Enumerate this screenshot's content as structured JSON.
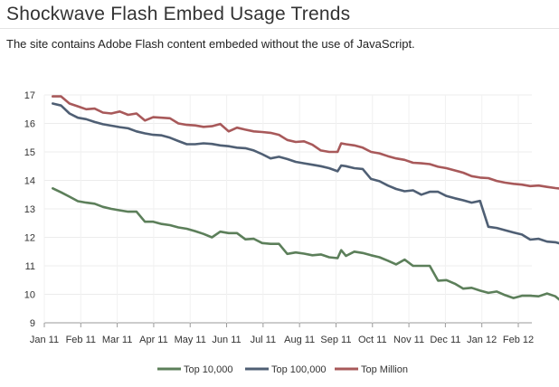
{
  "header": {
    "title": "Shockwave Flash Embed Usage Trends",
    "subtitle": "The site contains Adobe Flash content embeded without the use of JavaScript."
  },
  "chart_data": {
    "type": "line",
    "title": "Shockwave Flash Embed Usage Trends",
    "xlabel": "",
    "ylabel": "",
    "x_ticks": [
      "Jan 11",
      "Feb 11",
      "Mar 11",
      "Apr 11",
      "May 11",
      "Jun 11",
      "Jul 11",
      "Aug 11",
      "Sep 11",
      "Oct 11",
      "Nov 11",
      "Dec 11",
      "Jan 12",
      "Feb 12"
    ],
    "ylim": [
      9,
      17
    ],
    "y_ticks": [
      9,
      10,
      11,
      12,
      13,
      14,
      15,
      16,
      17
    ],
    "grid": true,
    "legend": "bottom",
    "series": [
      {
        "name": "Top 10,000",
        "color": "#5c7f5a",
        "points": [
          [
            "2011-01-08",
            13.72
          ],
          [
            "2011-01-15",
            13.58
          ],
          [
            "2011-01-22",
            13.43
          ],
          [
            "2011-01-29",
            13.27
          ],
          [
            "2011-02-05",
            13.22
          ],
          [
            "2011-02-12",
            13.18
          ],
          [
            "2011-02-19",
            13.07
          ],
          [
            "2011-02-26",
            13.0
          ],
          [
            "2011-03-05",
            12.95
          ],
          [
            "2011-03-12",
            12.9
          ],
          [
            "2011-03-19",
            12.9
          ],
          [
            "2011-03-26",
            12.55
          ],
          [
            "2011-04-02",
            12.55
          ],
          [
            "2011-04-09",
            12.47
          ],
          [
            "2011-04-16",
            12.43
          ],
          [
            "2011-04-23",
            12.35
          ],
          [
            "2011-04-30",
            12.3
          ],
          [
            "2011-05-07",
            12.22
          ],
          [
            "2011-05-14",
            12.12
          ],
          [
            "2011-05-21",
            12.0
          ],
          [
            "2011-05-28",
            12.2
          ],
          [
            "2011-06-04",
            12.15
          ],
          [
            "2011-06-11",
            12.15
          ],
          [
            "2011-06-18",
            11.93
          ],
          [
            "2011-06-25",
            11.95
          ],
          [
            "2011-07-02",
            11.8
          ],
          [
            "2011-07-09",
            11.77
          ],
          [
            "2011-07-16",
            11.77
          ],
          [
            "2011-07-23",
            11.42
          ],
          [
            "2011-07-30",
            11.47
          ],
          [
            "2011-08-06",
            11.43
          ],
          [
            "2011-08-13",
            11.37
          ],
          [
            "2011-08-20",
            11.4
          ],
          [
            "2011-08-27",
            11.3
          ],
          [
            "2011-09-03",
            11.27
          ],
          [
            "2011-09-06",
            11.55
          ],
          [
            "2011-09-10",
            11.35
          ],
          [
            "2011-09-17",
            11.5
          ],
          [
            "2011-09-24",
            11.45
          ],
          [
            "2011-10-01",
            11.37
          ],
          [
            "2011-10-08",
            11.3
          ],
          [
            "2011-10-15",
            11.18
          ],
          [
            "2011-10-22",
            11.05
          ],
          [
            "2011-10-29",
            11.22
          ],
          [
            "2011-11-05",
            11.0
          ],
          [
            "2011-11-12",
            11.0
          ],
          [
            "2011-11-19",
            11.0
          ],
          [
            "2011-11-26",
            10.48
          ],
          [
            "2011-12-03",
            10.5
          ],
          [
            "2011-12-10",
            10.37
          ],
          [
            "2011-12-17",
            10.2
          ],
          [
            "2011-12-24",
            10.23
          ],
          [
            "2011-12-31",
            10.13
          ],
          [
            "2012-01-07",
            10.05
          ],
          [
            "2012-01-14",
            10.1
          ],
          [
            "2012-01-21",
            9.97
          ],
          [
            "2012-01-28",
            9.87
          ],
          [
            "2012-02-04",
            9.95
          ],
          [
            "2012-02-11",
            9.95
          ],
          [
            "2012-02-18",
            9.93
          ],
          [
            "2012-02-25",
            10.03
          ],
          [
            "2012-03-03",
            9.93
          ],
          [
            "2012-03-10",
            9.68
          ]
        ]
      },
      {
        "name": "Top 100,000",
        "color": "#4f5f74",
        "points": [
          [
            "2011-01-08",
            16.7
          ],
          [
            "2011-01-15",
            16.63
          ],
          [
            "2011-01-22",
            16.35
          ],
          [
            "2011-01-29",
            16.2
          ],
          [
            "2011-02-05",
            16.15
          ],
          [
            "2011-02-12",
            16.05
          ],
          [
            "2011-02-19",
            15.97
          ],
          [
            "2011-02-26",
            15.92
          ],
          [
            "2011-03-05",
            15.87
          ],
          [
            "2011-03-12",
            15.83
          ],
          [
            "2011-03-19",
            15.72
          ],
          [
            "2011-03-26",
            15.65
          ],
          [
            "2011-04-02",
            15.6
          ],
          [
            "2011-04-09",
            15.58
          ],
          [
            "2011-04-16",
            15.5
          ],
          [
            "2011-04-23",
            15.38
          ],
          [
            "2011-04-30",
            15.27
          ],
          [
            "2011-05-07",
            15.27
          ],
          [
            "2011-05-14",
            15.3
          ],
          [
            "2011-05-21",
            15.28
          ],
          [
            "2011-05-28",
            15.23
          ],
          [
            "2011-06-04",
            15.2
          ],
          [
            "2011-06-11",
            15.15
          ],
          [
            "2011-06-18",
            15.13
          ],
          [
            "2011-06-25",
            15.05
          ],
          [
            "2011-07-02",
            14.92
          ],
          [
            "2011-07-09",
            14.77
          ],
          [
            "2011-07-16",
            14.83
          ],
          [
            "2011-07-23",
            14.75
          ],
          [
            "2011-07-30",
            14.65
          ],
          [
            "2011-08-06",
            14.6
          ],
          [
            "2011-08-13",
            14.55
          ],
          [
            "2011-08-20",
            14.5
          ],
          [
            "2011-08-27",
            14.43
          ],
          [
            "2011-09-03",
            14.32
          ],
          [
            "2011-09-06",
            14.52
          ],
          [
            "2011-09-10",
            14.5
          ],
          [
            "2011-09-17",
            14.43
          ],
          [
            "2011-09-24",
            14.4
          ],
          [
            "2011-10-01",
            14.05
          ],
          [
            "2011-10-08",
            13.97
          ],
          [
            "2011-10-15",
            13.82
          ],
          [
            "2011-10-22",
            13.7
          ],
          [
            "2011-10-29",
            13.62
          ],
          [
            "2011-11-05",
            13.65
          ],
          [
            "2011-11-12",
            13.5
          ],
          [
            "2011-11-19",
            13.6
          ],
          [
            "2011-11-26",
            13.6
          ],
          [
            "2011-12-03",
            13.45
          ],
          [
            "2011-12-10",
            13.37
          ],
          [
            "2011-12-17",
            13.3
          ],
          [
            "2011-12-24",
            13.22
          ],
          [
            "2011-12-31",
            13.28
          ],
          [
            "2012-01-07",
            12.37
          ],
          [
            "2012-01-14",
            12.33
          ],
          [
            "2012-01-21",
            12.25
          ],
          [
            "2012-01-28",
            12.17
          ],
          [
            "2012-02-04",
            12.1
          ],
          [
            "2012-02-11",
            11.92
          ],
          [
            "2012-02-18",
            11.95
          ],
          [
            "2012-02-25",
            11.85
          ],
          [
            "2012-03-03",
            11.83
          ],
          [
            "2012-03-10",
            11.75
          ]
        ]
      },
      {
        "name": "Top Million",
        "color": "#a8595a",
        "points": [
          [
            "2011-01-08",
            16.95
          ],
          [
            "2011-01-15",
            16.95
          ],
          [
            "2011-01-22",
            16.7
          ],
          [
            "2011-01-29",
            16.6
          ],
          [
            "2011-02-05",
            16.5
          ],
          [
            "2011-02-12",
            16.52
          ],
          [
            "2011-02-19",
            16.38
          ],
          [
            "2011-02-26",
            16.35
          ],
          [
            "2011-03-05",
            16.42
          ],
          [
            "2011-03-12",
            16.3
          ],
          [
            "2011-03-19",
            16.35
          ],
          [
            "2011-03-26",
            16.1
          ],
          [
            "2011-04-02",
            16.22
          ],
          [
            "2011-04-09",
            16.2
          ],
          [
            "2011-04-16",
            16.18
          ],
          [
            "2011-04-23",
            16.0
          ],
          [
            "2011-04-30",
            15.95
          ],
          [
            "2011-05-07",
            15.93
          ],
          [
            "2011-05-14",
            15.88
          ],
          [
            "2011-05-21",
            15.9
          ],
          [
            "2011-05-28",
            15.98
          ],
          [
            "2011-06-04",
            15.72
          ],
          [
            "2011-06-11",
            15.85
          ],
          [
            "2011-06-18",
            15.78
          ],
          [
            "2011-06-25",
            15.72
          ],
          [
            "2011-07-02",
            15.7
          ],
          [
            "2011-07-09",
            15.67
          ],
          [
            "2011-07-16",
            15.6
          ],
          [
            "2011-07-23",
            15.42
          ],
          [
            "2011-07-30",
            15.35
          ],
          [
            "2011-08-06",
            15.37
          ],
          [
            "2011-08-13",
            15.25
          ],
          [
            "2011-08-20",
            15.05
          ],
          [
            "2011-08-27",
            15.0
          ],
          [
            "2011-09-03",
            15.0
          ],
          [
            "2011-09-06",
            15.3
          ],
          [
            "2011-09-10",
            15.27
          ],
          [
            "2011-09-17",
            15.23
          ],
          [
            "2011-09-24",
            15.15
          ],
          [
            "2011-10-01",
            15.0
          ],
          [
            "2011-10-08",
            14.95
          ],
          [
            "2011-10-15",
            14.85
          ],
          [
            "2011-10-22",
            14.77
          ],
          [
            "2011-10-29",
            14.72
          ],
          [
            "2011-11-05",
            14.62
          ],
          [
            "2011-11-12",
            14.6
          ],
          [
            "2011-11-19",
            14.57
          ],
          [
            "2011-11-26",
            14.48
          ],
          [
            "2011-12-03",
            14.43
          ],
          [
            "2011-12-10",
            14.35
          ],
          [
            "2011-12-17",
            14.27
          ],
          [
            "2011-12-24",
            14.15
          ],
          [
            "2011-12-31",
            14.1
          ],
          [
            "2012-01-07",
            14.08
          ],
          [
            "2012-01-14",
            13.98
          ],
          [
            "2012-01-21",
            13.92
          ],
          [
            "2012-01-28",
            13.88
          ],
          [
            "2012-02-04",
            13.85
          ],
          [
            "2012-02-11",
            13.8
          ],
          [
            "2012-02-18",
            13.82
          ],
          [
            "2012-02-25",
            13.77
          ],
          [
            "2012-03-03",
            13.73
          ],
          [
            "2012-03-10",
            13.7
          ]
        ]
      }
    ]
  }
}
